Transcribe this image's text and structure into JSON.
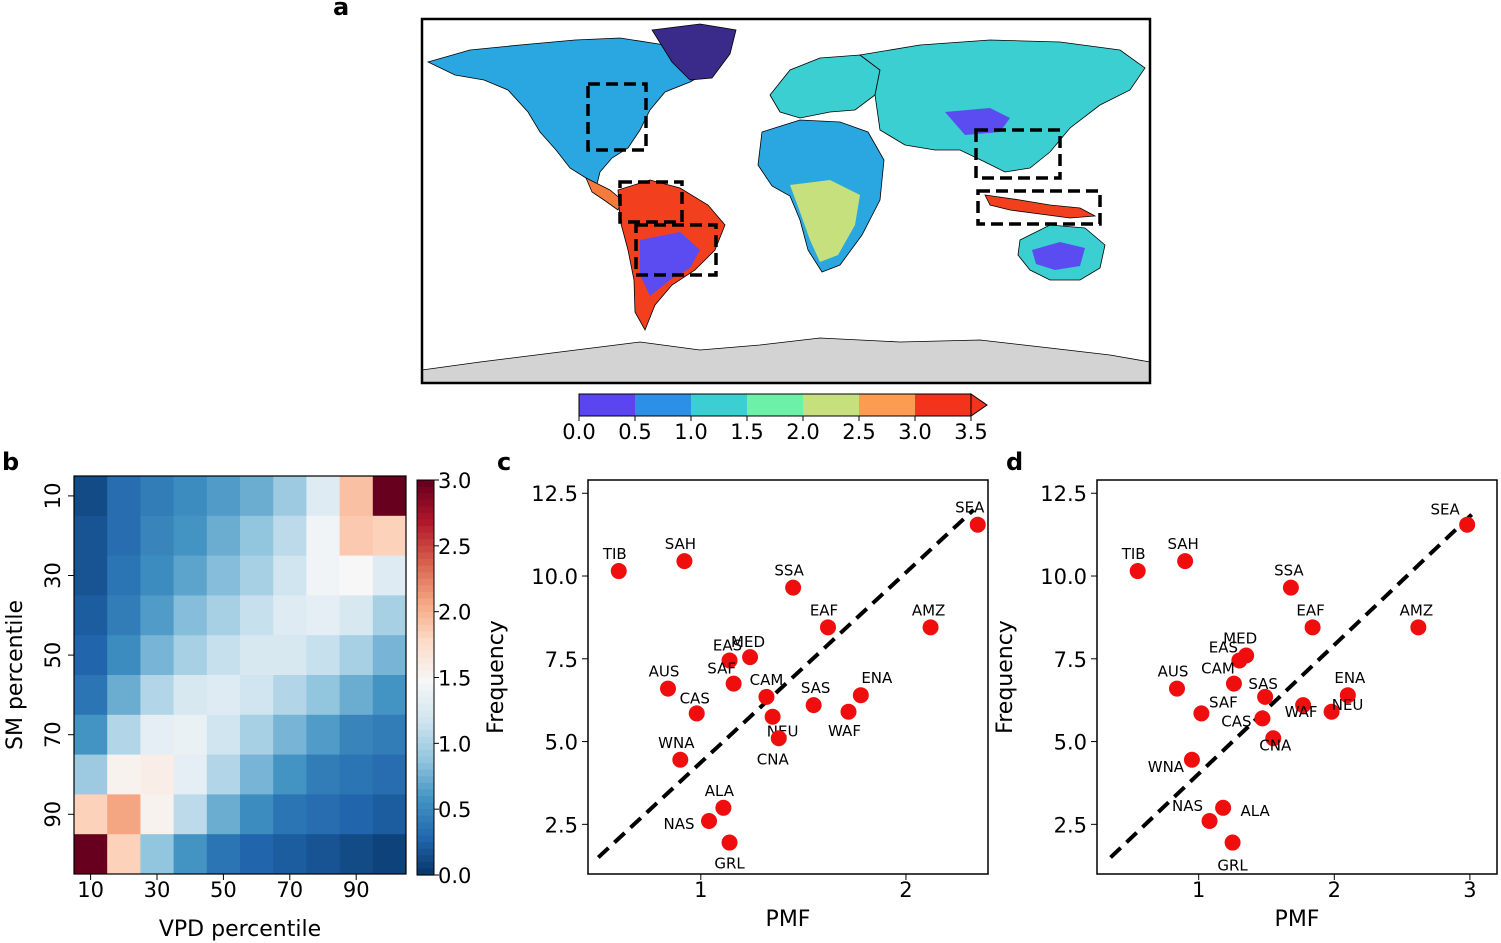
{
  "panels": {
    "a": {
      "letter": "a",
      "colorbar": {
        "ticks": [
          "0.0",
          "0.5",
          "1.0",
          "1.5",
          "2.0",
          "2.5",
          "3.0",
          "3.5"
        ],
        "colors": [
          "#5b45f0",
          "#2e8fe6",
          "#3ccfd2",
          "#6ff0a8",
          "#c6e07e",
          "#fb9c52",
          "#f3331c"
        ],
        "extend": "max"
      },
      "map": {
        "land_color": "#2aa6e0",
        "antarctica_color": "#d3d3d3",
        "region_boxes": 6
      }
    },
    "b": {
      "letter": "b"
    },
    "c": {
      "letter": "c"
    },
    "d": {
      "letter": "d"
    }
  },
  "chart_data": [
    {
      "panel": "b",
      "type": "heatmap",
      "xlabel": "VPD percentile",
      "ylabel": "SM percentile",
      "xticks": [
        "10",
        "30",
        "50",
        "70",
        "90"
      ],
      "yticks": [
        "10",
        "30",
        "50",
        "70",
        "90"
      ],
      "colorbar_ticks": [
        "3.0",
        "2.5",
        "2.0",
        "1.5",
        "1.0",
        "0.5",
        "0.0"
      ],
      "vmin": 0,
      "vmax": 3,
      "values": [
        [
          0.15,
          0.35,
          0.45,
          0.55,
          0.65,
          0.75,
          0.95,
          1.3,
          1.95,
          3.0
        ],
        [
          0.2,
          0.35,
          0.5,
          0.6,
          0.75,
          0.9,
          1.1,
          1.45,
          1.9,
          1.85
        ],
        [
          0.2,
          0.4,
          0.55,
          0.7,
          0.85,
          1.0,
          1.2,
          1.45,
          1.5,
          1.3
        ],
        [
          0.25,
          0.45,
          0.65,
          0.85,
          1.0,
          1.15,
          1.3,
          1.35,
          1.25,
          1.0
        ],
        [
          0.3,
          0.55,
          0.8,
          1.0,
          1.15,
          1.25,
          1.25,
          1.15,
          1.0,
          0.8
        ],
        [
          0.4,
          0.75,
          1.05,
          1.25,
          1.3,
          1.2,
          1.05,
          0.9,
          0.75,
          0.6
        ],
        [
          0.6,
          1.05,
          1.35,
          1.4,
          1.2,
          1.0,
          0.8,
          0.65,
          0.5,
          0.45
        ],
        [
          0.95,
          1.55,
          1.6,
          1.35,
          1.05,
          0.8,
          0.6,
          0.45,
          0.4,
          0.35
        ],
        [
          1.85,
          2.1,
          1.55,
          1.1,
          0.75,
          0.55,
          0.4,
          0.35,
          0.3,
          0.25
        ],
        [
          3.0,
          1.85,
          0.9,
          0.6,
          0.4,
          0.3,
          0.25,
          0.2,
          0.15,
          0.1
        ]
      ]
    },
    {
      "panel": "c",
      "type": "scatter",
      "xlabel": "PMF",
      "ylabel": "Frequency",
      "xlim": [
        0.45,
        2.4
      ],
      "ylim": [
        1.0,
        12.9
      ],
      "xticks": [
        1,
        2
      ],
      "yticks": [
        2.5,
        5.0,
        7.5,
        10.0,
        12.5
      ],
      "fit_line": {
        "x": [
          0.5,
          2.33
        ],
        "y": [
          1.5,
          12.0
        ]
      },
      "points": [
        {
          "label": "SEA",
          "x": 2.35,
          "y": 11.55
        },
        {
          "label": "TIB",
          "x": 0.6,
          "y": 10.15
        },
        {
          "label": "SAH",
          "x": 0.92,
          "y": 10.45
        },
        {
          "label": "SSA",
          "x": 1.45,
          "y": 9.65
        },
        {
          "label": "AMZ",
          "x": 2.12,
          "y": 8.45
        },
        {
          "label": "EAF",
          "x": 1.62,
          "y": 8.45
        },
        {
          "label": "EAS",
          "x": 1.14,
          "y": 7.45
        },
        {
          "label": "MED",
          "x": 1.24,
          "y": 7.55
        },
        {
          "label": "AUS",
          "x": 0.84,
          "y": 6.6
        },
        {
          "label": "SAF",
          "x": 1.16,
          "y": 6.75
        },
        {
          "label": "CAM",
          "x": 1.32,
          "y": 6.35
        },
        {
          "label": "CAS",
          "x": 0.98,
          "y": 5.85
        },
        {
          "label": "SAS",
          "x": 1.55,
          "y": 6.1
        },
        {
          "label": "ENA",
          "x": 1.78,
          "y": 6.4
        },
        {
          "label": "WAF",
          "x": 1.72,
          "y": 5.9
        },
        {
          "label": "NEU",
          "x": 1.35,
          "y": 5.75
        },
        {
          "label": "CNA",
          "x": 1.38,
          "y": 5.1
        },
        {
          "label": "WNA",
          "x": 0.9,
          "y": 4.45
        },
        {
          "label": "ALA",
          "x": 1.11,
          "y": 3.0
        },
        {
          "label": "NAS",
          "x": 1.04,
          "y": 2.6
        },
        {
          "label": "GRL",
          "x": 1.14,
          "y": 1.95
        }
      ]
    },
    {
      "panel": "d",
      "type": "scatter",
      "xlabel": "PMF",
      "ylabel": "Frequency",
      "xlim": [
        0.25,
        3.2
      ],
      "ylim": [
        1.0,
        12.9
      ],
      "xticks": [
        1,
        2,
        3
      ],
      "yticks": [
        2.5,
        5.0,
        7.5,
        10.0,
        12.5
      ],
      "fit_line": {
        "x": [
          0.35,
          3.05
        ],
        "y": [
          1.5,
          12.0
        ]
      },
      "points": [
        {
          "label": "SEA",
          "x": 2.98,
          "y": 11.55
        },
        {
          "label": "TIB",
          "x": 0.55,
          "y": 10.15
        },
        {
          "label": "SAH",
          "x": 0.9,
          "y": 10.45
        },
        {
          "label": "SSA",
          "x": 1.68,
          "y": 9.65
        },
        {
          "label": "AMZ",
          "x": 2.62,
          "y": 8.45
        },
        {
          "label": "EAF",
          "x": 1.84,
          "y": 8.45
        },
        {
          "label": "MED",
          "x": 1.35,
          "y": 7.6
        },
        {
          "label": "EAS",
          "x": 1.3,
          "y": 7.45
        },
        {
          "label": "AUS",
          "x": 0.84,
          "y": 6.6
        },
        {
          "label": "CAM",
          "x": 1.26,
          "y": 6.75
        },
        {
          "label": "SAS",
          "x": 1.49,
          "y": 6.35
        },
        {
          "label": "SAF",
          "x": 1.02,
          "y": 5.85
        },
        {
          "label": "ENA",
          "x": 2.1,
          "y": 6.4
        },
        {
          "label": "WAF",
          "x": 1.77,
          "y": 6.1
        },
        {
          "label": "NEU",
          "x": 1.98,
          "y": 5.9
        },
        {
          "label": "CAS",
          "x": 1.47,
          "y": 5.7
        },
        {
          "label": "CNA",
          "x": 1.55,
          "y": 5.1
        },
        {
          "label": "WNA",
          "x": 0.95,
          "y": 4.45
        },
        {
          "label": "ALA",
          "x": 1.18,
          "y": 3.0
        },
        {
          "label": "NAS",
          "x": 1.08,
          "y": 2.6
        },
        {
          "label": "GRL",
          "x": 1.25,
          "y": 1.95
        }
      ]
    }
  ]
}
